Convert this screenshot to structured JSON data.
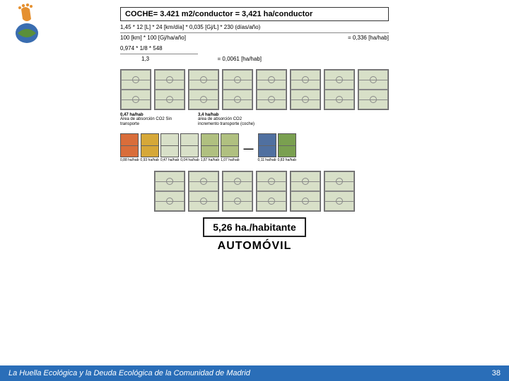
{
  "header": "COCHE= 3.421 m2/conductor = 3,421 ha/conductor",
  "formula1_line1": "1,45 * 12 [L] * 24 [km/día] * 0,035 [Gj/L] * 230 (días/año)",
  "formula1_line2": "100 [km] * 100 [Gj/ha/año]",
  "formula1_result": "= 0,336 [ha/hab]",
  "formula2_line1": "0,974 * 1/8 * 548",
  "formula2_line2": "1,3",
  "formula2_result": "= 0,0061 [ha/hab]",
  "group1_label_a": "0,47 ha/hab",
  "group1_label_b": "Área de absorción CO2\nSin transporte",
  "group2_label_a": "3,4 ha/hab",
  "group2_label_b": "área de absorción CO2\nincremento transporte (coche)",
  "small_labels": [
    "0,88 ha/hab",
    "0,93 ha/hab",
    "0,47 ha/hab",
    "0,04 ha/hab",
    "1,87 ha/hab",
    "1,07 ha/hab",
    "0,11 ha/hab",
    "0,83 ha/hab"
  ],
  "small_colors": [
    "#d96d3a",
    "#d6a838",
    "#d8e0c8",
    "#d8e0c8",
    "#b0c080",
    "#b0c080",
    "#5070a0",
    "#7aa050"
  ],
  "result": "5,26 ha./habitante",
  "title": "AUTOMÓVIL",
  "footer_text": "La Huella Ecológica y la Deuda Ecológica de la Comunidad de Madrid",
  "footer_page": "38",
  "field_bg": "#d8e0c8"
}
